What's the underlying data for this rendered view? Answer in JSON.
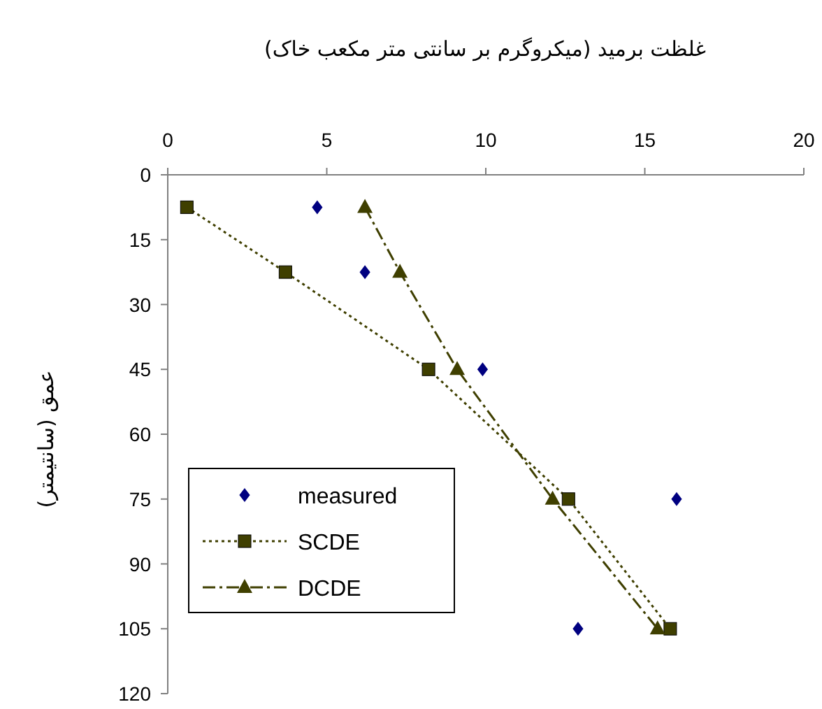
{
  "chart_data": {
    "type": "line",
    "title": "غلظت برمید (میکروگرم بر سانتی متر مکعب خاک)",
    "ylabel": "عمق (سانتیمتر)",
    "xlim": [
      0,
      20
    ],
    "xticks": [
      0,
      5,
      10,
      15,
      20
    ],
    "ylim": [
      120,
      0
    ],
    "yticks": [
      0,
      15,
      30,
      45,
      60,
      75,
      90,
      105,
      120
    ],
    "legend": "bottom left",
    "grid": false,
    "series": [
      {
        "name": "measured",
        "type": "scatter",
        "marker": "diamond",
        "color": "#000080",
        "x": [
          4.7,
          6.2,
          9.9,
          16.0,
          12.9
        ],
        "values": [
          7.5,
          22.5,
          45,
          75,
          105
        ]
      },
      {
        "name": "SCDE",
        "type": "line",
        "marker": "square",
        "line_style": "dotted",
        "color": "#3f3f00",
        "x": [
          0.6,
          3.7,
          8.2,
          12.6,
          15.8
        ],
        "values": [
          7.5,
          22.5,
          45,
          75,
          105
        ]
      },
      {
        "name": "DCDE",
        "type": "line",
        "marker": "triangle",
        "line_style": "dashed",
        "color": "#3f3f00",
        "x": [
          6.2,
          7.3,
          9.1,
          12.1,
          15.4
        ],
        "values": [
          7.5,
          22.5,
          45,
          75,
          105
        ]
      }
    ]
  }
}
